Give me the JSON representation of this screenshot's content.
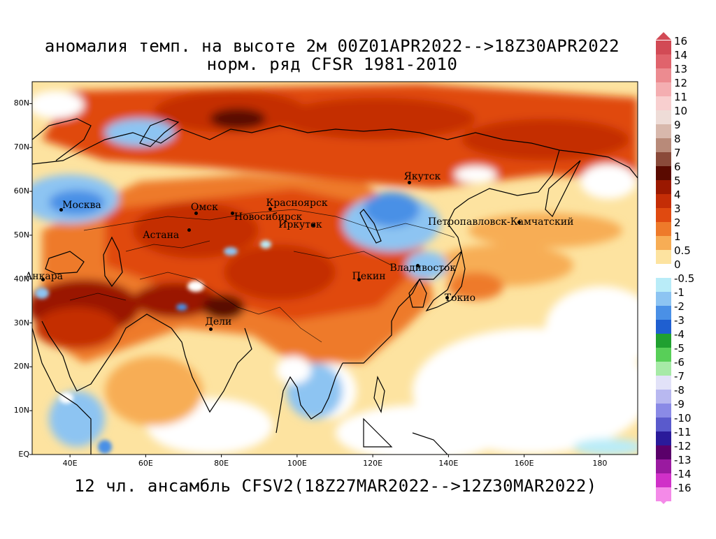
{
  "title_line1": "аномалия темп. на высоте 2м 00Z01APR2022-->18Z30APR2022",
  "title_line2": "норм. ряд CFSR 1981-2010",
  "footer": "12 чл. ансамбль CFSV2(18Z27MAR2022-->12Z30MAR2022)",
  "lat_labels": [
    "80N",
    "70N",
    "60N",
    "50N",
    "40N",
    "30N",
    "20N",
    "10N",
    "EQ"
  ],
  "lon_labels": [
    "40E",
    "60E",
    "80E",
    "100E",
    "120E",
    "140E",
    "160E",
    "180"
  ],
  "legend": [
    {
      "value": "16",
      "color": "#d24a55"
    },
    {
      "value": "14",
      "color": "#e0636c"
    },
    {
      "value": "13",
      "color": "#ec8b90"
    },
    {
      "value": "12",
      "color": "#f4aeb1"
    },
    {
      "value": "11",
      "color": "#f8cfcf"
    },
    {
      "value": "10",
      "color": "#eedcd7"
    },
    {
      "value": "9",
      "color": "#d8b8ac"
    },
    {
      "value": "8",
      "color": "#b88a79"
    },
    {
      "value": "7",
      "color": "#8a4a3a"
    },
    {
      "value": "6",
      "color": "#5a0a00"
    },
    {
      "value": "5",
      "color": "#9a1800"
    },
    {
      "value": "4",
      "color": "#c42d06"
    },
    {
      "value": "3",
      "color": "#e04a10"
    },
    {
      "value": "2",
      "color": "#ee7a2a"
    },
    {
      "value": "1",
      "color": "#f7ad55"
    },
    {
      "value": "0.5",
      "color": "#fde3a0"
    },
    {
      "value": "0",
      "color": "#ffffff"
    },
    {
      "value": "-0.5",
      "color": "#b9ecf8"
    },
    {
      "value": "-1",
      "color": "#8dc4f2"
    },
    {
      "value": "-2",
      "color": "#4a90e6"
    },
    {
      "value": "-3",
      "color": "#1f5fd0"
    },
    {
      "value": "-4",
      "color": "#20a030"
    },
    {
      "value": "-5",
      "color": "#58cf58"
    },
    {
      "value": "-6",
      "color": "#a7eaa7"
    },
    {
      "value": "-7",
      "color": "#e2e2f8"
    },
    {
      "value": "-8",
      "color": "#b8b8f0"
    },
    {
      "value": "-9",
      "color": "#8a8ae6"
    },
    {
      "value": "-10",
      "color": "#5a5acc"
    },
    {
      "value": "-11",
      "color": "#2a1a9a"
    },
    {
      "value": "-12",
      "color": "#5a006a"
    },
    {
      "value": "-13",
      "color": "#9a1aa0"
    },
    {
      "value": "-14",
      "color": "#d030c8"
    },
    {
      "value": "-16",
      "color": "#f48ae8"
    }
  ],
  "cities": [
    {
      "name": "Москва",
      "lon": 37.6,
      "lat": 55.8
    },
    {
      "name": "Омск",
      "lon": 73.4,
      "lat": 55.0
    },
    {
      "name": "Красноярск",
      "lon": 92.9,
      "lat": 56.0
    },
    {
      "name": "Новосибирск",
      "lon": 83.0,
      "lat": 55.0
    },
    {
      "name": "Астана",
      "lon": 71.4,
      "lat": 51.2
    },
    {
      "name": "Иркутск",
      "lon": 104.3,
      "lat": 52.3
    },
    {
      "name": "Якутск",
      "lon": 129.7,
      "lat": 62.0
    },
    {
      "name": "Петропавловск-Камчатский",
      "lon": 158.6,
      "lat": 53.0
    },
    {
      "name": "Владивосток",
      "lon": 131.9,
      "lat": 43.1
    },
    {
      "name": "Пекин",
      "lon": 116.4,
      "lat": 39.9
    },
    {
      "name": "Токио",
      "lon": 139.7,
      "lat": 35.7
    },
    {
      "name": "Анкара",
      "lon": 32.9,
      "lat": 39.9
    },
    {
      "name": "Дели",
      "lon": 77.2,
      "lat": 28.6
    }
  ]
}
